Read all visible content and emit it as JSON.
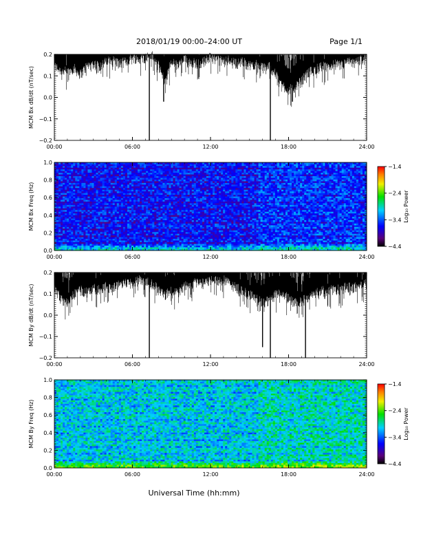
{
  "header": {
    "title": "2018/01/19   00:00–24:00 UT",
    "page": "Page 1/1"
  },
  "footer": {
    "xlabel": "Universal Time (hh:mm)"
  },
  "chart_data": [
    {
      "type": "line",
      "ylabel": "MCM Bx dB/dt (nT/sec)",
      "ylim": [
        -0.2,
        0.2
      ],
      "yticks": [
        "0.2",
        "0.1",
        "0.0",
        "−0.1",
        "−0.2"
      ],
      "xlim": [
        0,
        24
      ],
      "xticks": [
        "00:00",
        "06:00",
        "12:00",
        "18:00",
        "24:00"
      ],
      "color": "#000000",
      "envelope_lower": [
        [
          0,
          0.12
        ],
        [
          0.5,
          0.1
        ],
        [
          1,
          0.09
        ],
        [
          1.5,
          0.11
        ],
        [
          2,
          0.08
        ],
        [
          2.5,
          0.12
        ],
        [
          3,
          0.13
        ],
        [
          3.5,
          0.12
        ],
        [
          4,
          0.14
        ],
        [
          4.5,
          0.15
        ],
        [
          5,
          0.13
        ],
        [
          5.5,
          0.14
        ],
        [
          6,
          0.16
        ],
        [
          6.5,
          0.15
        ],
        [
          7,
          0.16
        ],
        [
          7.5,
          0.17
        ],
        [
          8,
          0.12
        ],
        [
          8.5,
          0.05
        ],
        [
          9,
          0.14
        ],
        [
          9.5,
          0.12
        ],
        [
          10,
          0.15
        ],
        [
          10.5,
          0.14
        ],
        [
          11,
          0.13
        ],
        [
          11.5,
          0.14
        ],
        [
          12,
          0.16
        ],
        [
          12.5,
          0.15
        ],
        [
          13,
          0.14
        ],
        [
          13.5,
          0.15
        ],
        [
          14,
          0.13
        ],
        [
          14.5,
          0.14
        ],
        [
          15,
          0.12
        ],
        [
          15.5,
          0.13
        ],
        [
          16,
          0.11
        ],
        [
          16.5,
          0.12
        ],
        [
          17,
          0.08
        ],
        [
          17.5,
          0.03
        ],
        [
          18,
          0.01
        ],
        [
          18.5,
          0.02
        ],
        [
          19,
          0.05
        ],
        [
          19.5,
          0.09
        ],
        [
          20,
          0.1
        ],
        [
          20.5,
          0.12
        ],
        [
          21,
          0.11
        ],
        [
          21.5,
          0.13
        ],
        [
          22,
          0.12
        ],
        [
          22.5,
          0.14
        ],
        [
          23,
          0.13
        ],
        [
          23.5,
          0.15
        ],
        [
          24,
          0.15
        ]
      ],
      "spikes": [
        [
          7.3,
          -0.2
        ],
        [
          8.4,
          -0.02
        ],
        [
          16.6,
          -0.2
        ],
        [
          18.3,
          -0.02
        ]
      ]
    },
    {
      "type": "heatmap",
      "ylabel": "MCM Bx Freq (Hz)",
      "ylim": [
        0,
        1.0
      ],
      "yticks": [
        "1.0",
        "0.8",
        "0.6",
        "0.4",
        "0.2",
        "0.0"
      ],
      "xlim": [
        0,
        24
      ],
      "xticks": [
        "00:00",
        "06:00",
        "12:00",
        "18:00",
        "24:00"
      ],
      "colorbar": {
        "label": "Log₁₀ Power",
        "range": [
          -4.4,
          -1.4
        ],
        "ticks": [
          "−1.4",
          "−2.4",
          "−3.4",
          "−4.4"
        ]
      },
      "level": -3.6
    },
    {
      "type": "line",
      "ylabel": "MCM By dB/dt (nT/sec)",
      "ylim": [
        -0.2,
        0.2
      ],
      "yticks": [
        "0.2",
        "0.1",
        "0.0",
        "−0.1",
        "−0.2"
      ],
      "xlim": [
        0,
        24
      ],
      "xticks": [
        "00:00",
        "06:00",
        "12:00",
        "18:00",
        "24:00"
      ],
      "color": "#000000",
      "envelope_lower": [
        [
          0,
          0.1
        ],
        [
          0.5,
          0.05
        ],
        [
          1,
          0.03
        ],
        [
          1.5,
          0.07
        ],
        [
          2,
          0.09
        ],
        [
          2.5,
          0.08
        ],
        [
          3,
          0.1
        ],
        [
          3.5,
          0.09
        ],
        [
          4,
          0.11
        ],
        [
          4.5,
          0.1
        ],
        [
          5,
          0.12
        ],
        [
          5.5,
          0.13
        ],
        [
          6,
          0.12
        ],
        [
          6.5,
          0.14
        ],
        [
          7,
          0.13
        ],
        [
          7.5,
          0.12
        ],
        [
          8,
          0.1
        ],
        [
          8.5,
          0.07
        ],
        [
          9,
          0.09
        ],
        [
          9.5,
          0.08
        ],
        [
          10,
          0.11
        ],
        [
          10.5,
          0.12
        ],
        [
          11,
          0.13
        ],
        [
          11.5,
          0.12
        ],
        [
          12,
          0.14
        ],
        [
          12.5,
          0.13
        ],
        [
          13,
          0.14
        ],
        [
          13.5,
          0.12
        ],
        [
          14,
          0.1
        ],
        [
          14.5,
          0.09
        ],
        [
          15,
          0.07
        ],
        [
          15.5,
          0.05
        ],
        [
          16,
          0.03
        ],
        [
          16.5,
          0.04
        ],
        [
          17,
          0.07
        ],
        [
          17.5,
          0.08
        ],
        [
          18,
          0.05
        ],
        [
          18.5,
          0.03
        ],
        [
          19,
          0.04
        ],
        [
          19.5,
          0.06
        ],
        [
          20,
          0.07
        ],
        [
          20.5,
          0.09
        ],
        [
          21,
          0.08
        ],
        [
          21.5,
          0.1
        ],
        [
          22,
          0.09
        ],
        [
          22.5,
          0.11
        ],
        [
          23,
          0.1
        ],
        [
          23.5,
          0.12
        ],
        [
          24,
          0.12
        ]
      ],
      "spikes": [
        [
          7.3,
          -0.2
        ],
        [
          16.0,
          -0.15
        ],
        [
          16.6,
          -0.2
        ],
        [
          19.3,
          -0.2
        ]
      ]
    },
    {
      "type": "heatmap",
      "ylabel": "MCM By Freq (Hz)",
      "ylim": [
        0,
        1.0
      ],
      "yticks": [
        "1.0",
        "0.8",
        "0.6",
        "0.4",
        "0.2",
        "0.0"
      ],
      "xlim": [
        0,
        24
      ],
      "xticks": [
        "00:00",
        "06:00",
        "12:00",
        "18:00",
        "24:00"
      ],
      "colorbar": {
        "label": "Log₁₀ Power",
        "range": [
          -4.4,
          -1.4
        ],
        "ticks": [
          "−1.4",
          "−2.4",
          "−3.4",
          "−4.4"
        ]
      },
      "level": -3.0
    }
  ]
}
